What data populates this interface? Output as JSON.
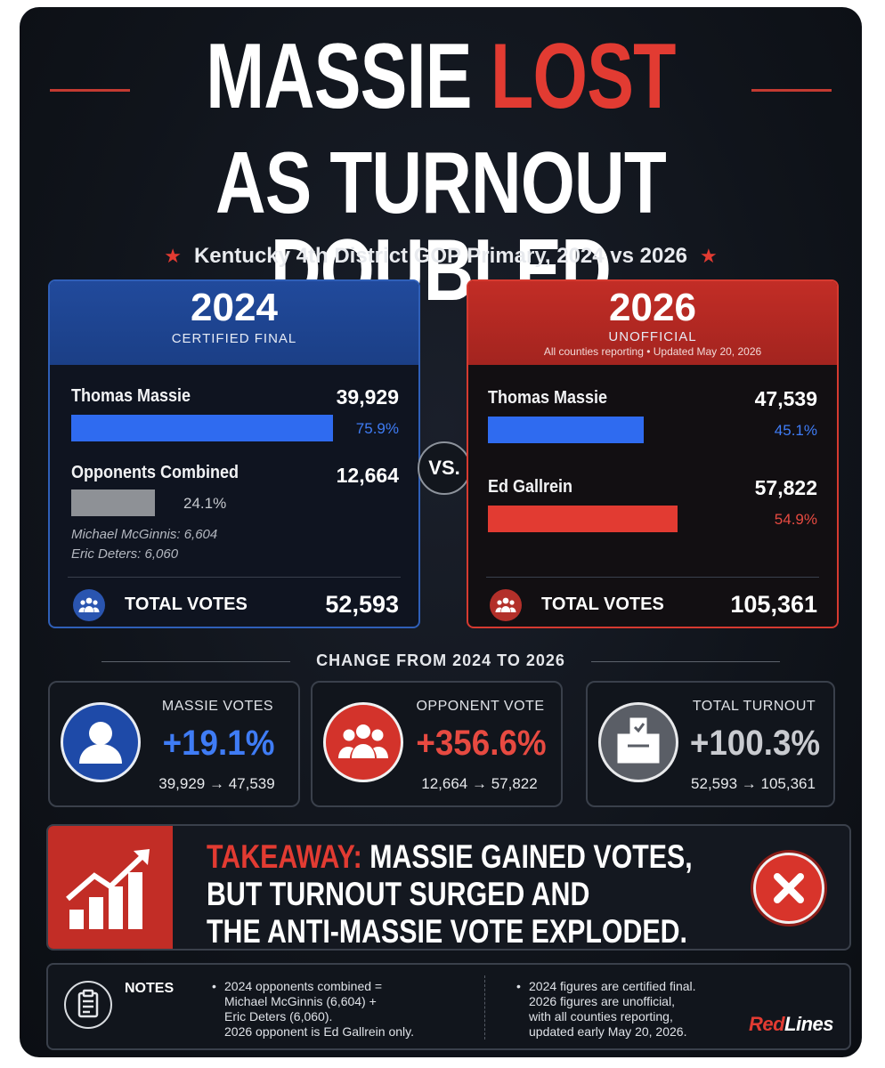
{
  "headline": {
    "line1_part1": "MASSIE",
    "line1_part2": "LOST",
    "line2": "AS TURNOUT DOUBLED"
  },
  "subtitle": "Kentucky 4th District GOP Primary, 2024 vs 2026",
  "vs_label": "VS.",
  "panel_2024": {
    "year": "2024",
    "tag": "CERTIFIED FINAL",
    "cand1": {
      "name": "Thomas Massie",
      "votes": "39,929",
      "pct": "75.9%"
    },
    "cand2": {
      "name": "Opponents Combined",
      "votes": "12,664",
      "pct": "24.1%"
    },
    "breakdown": [
      "Michael McGinnis: 6,604",
      "Eric Deters: 6,060"
    ],
    "total_label": "TOTAL VOTES",
    "total_value": "52,593"
  },
  "panel_2026": {
    "year": "2026",
    "tag": "UNOFFICIAL",
    "status": "All counties reporting • Updated May 20, 2026",
    "cand1": {
      "name": "Thomas Massie",
      "votes": "47,539",
      "pct": "45.1%"
    },
    "cand2": {
      "name": "Ed Gallrein",
      "votes": "57,822",
      "pct": "54.9%"
    },
    "total_label": "TOTAL VOTES",
    "total_value": "105,361"
  },
  "change": {
    "title": "CHANGE FROM 2024 TO 2026",
    "stats": [
      {
        "label": "MASSIE VOTES",
        "value": "+19.1%",
        "from_to": "39,929 → 47,539"
      },
      {
        "label": "OPPONENT VOTE",
        "value": "+356.6%",
        "from_to": "12,664 → 57,822"
      },
      {
        "label": "TOTAL TURNOUT",
        "value": "+100.3%",
        "from_to": "52,593 → 105,361"
      }
    ]
  },
  "takeaway": {
    "label": "TAKEAWAY:",
    "lines": [
      "MASSIE GAINED VOTES,",
      "BUT TURNOUT SURGED AND",
      "THE ANTI-MASSIE VOTE EXPLODED."
    ]
  },
  "notes": {
    "label": "NOTES",
    "left": [
      "2024 opponents combined =",
      "Michael McGinnis (6,604) +",
      "Eric Deters (6,060).",
      "2026 opponent is Ed Gallrein only."
    ],
    "right": [
      "2024 figures are certified final.",
      "2026 figures are unofficial,",
      "with all counties reporting,",
      "updated early May 20, 2026."
    ]
  },
  "brand": {
    "part1": "Red",
    "part2": "Lines"
  },
  "colors": {
    "blue": "#2f6bf0",
    "red": "#e23b32",
    "gray": "#8e9196",
    "background": "#10141b"
  },
  "chart_data": [
    {
      "type": "bar",
      "title": "2024",
      "categories": [
        "Thomas Massie",
        "Opponents Combined"
      ],
      "values": [
        39929,
        12664
      ],
      "percent": [
        75.9,
        24.1
      ],
      "total": 52593
    },
    {
      "type": "bar",
      "title": "2026",
      "categories": [
        "Thomas Massie",
        "Ed Gallrein"
      ],
      "values": [
        47539,
        57822
      ],
      "percent": [
        45.1,
        54.9
      ],
      "total": 105361
    }
  ]
}
